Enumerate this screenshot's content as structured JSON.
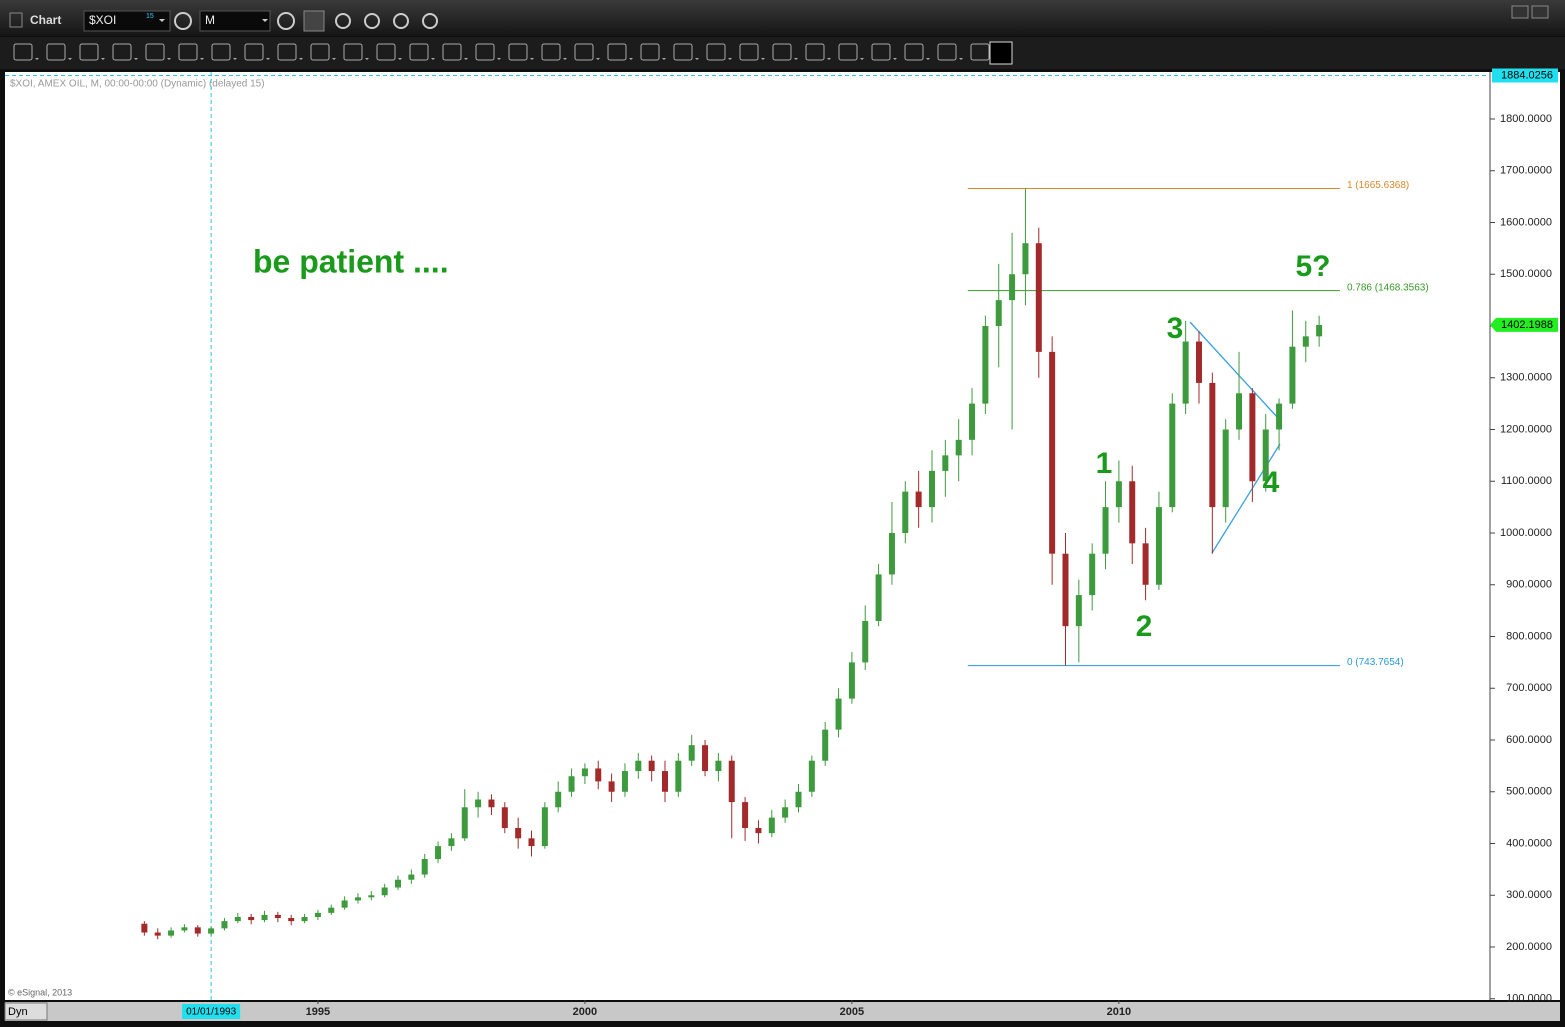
{
  "window": {
    "title": "Chart",
    "symbol": "$XOI",
    "symbol_badge": "15",
    "interval": "M",
    "status": "Dyn"
  },
  "chart_data": {
    "type": "candlestick",
    "title": "$XOI, AMEX OIL, M, 00:00-00:00 (Dynamic) (delayed 15)",
    "copyright": "© eSignal, 2013",
    "annotation": "be patient ....",
    "waves": [
      "1",
      "2",
      "3",
      "4",
      "5?"
    ],
    "up_color": "#3d9a3d",
    "down_color": "#a32a2a",
    "grid": false,
    "xlim": [
      1989.14,
      2016.95
    ],
    "xticks": [
      1995,
      2000,
      2005,
      2010
    ],
    "ylim": [
      97.6,
      1890.8
    ],
    "yticks": [
      {
        "value": 100,
        "label": "100.0000"
      },
      {
        "value": 200,
        "label": "200.0000"
      },
      {
        "value": 300,
        "label": "300.0000"
      },
      {
        "value": 400,
        "label": "400.0000"
      },
      {
        "value": 500,
        "label": "500.0000"
      },
      {
        "value": 600,
        "label": "600.0000"
      },
      {
        "value": 700,
        "label": "700.0000"
      },
      {
        "value": 800,
        "label": "800.0000"
      },
      {
        "value": 900,
        "label": "900.0000"
      },
      {
        "value": 1000,
        "label": "1000.0000"
      },
      {
        "value": 1100,
        "label": "1100.0000"
      },
      {
        "value": 1200,
        "label": "1200.0000"
      },
      {
        "value": 1300,
        "label": "1300.0000"
      },
      {
        "value": 1400,
        "label": "1400.0000"
      },
      {
        "value": 1500,
        "label": "1500.0000"
      },
      {
        "value": 1600,
        "label": "1600.0000"
      },
      {
        "value": 1700,
        "label": "1700.0000"
      },
      {
        "value": 1800,
        "label": "1800.0000"
      }
    ],
    "cursor_x": {
      "value": 1993.0,
      "label": "01/01/1993"
    },
    "cursor_price": 1884.0256,
    "last_price": 1402.1988,
    "fib_x": [
      2007.17,
      2014.14
    ],
    "fib_levels": [
      {
        "label": "1 (1665.6368)",
        "value": 1665.6368,
        "color": "#d9892b"
      },
      {
        "label": "0.786 (1468.3563)",
        "value": 1468.3563,
        "color": "#3a9a2a"
      },
      {
        "label": "0 (743.7654)",
        "value": 743.7654,
        "color": "#2a9ad9"
      }
    ],
    "x": [
      1991.75,
      1992,
      1992.25,
      1992.5,
      1992.75,
      1993,
      1993.25,
      1993.5,
      1993.75,
      1994,
      1994.25,
      1994.5,
      1994.75,
      1995,
      1995.25,
      1995.5,
      1995.75,
      1996,
      1996.25,
      1996.5,
      1996.75,
      1997,
      1997.25,
      1997.5,
      1997.75,
      1998,
      1998.25,
      1998.5,
      1998.75,
      1999,
      1999.25,
      1999.5,
      1999.75,
      2000,
      2000.25,
      2000.5,
      2000.75,
      2001,
      2001.25,
      2001.5,
      2001.75,
      2002,
      2002.25,
      2002.5,
      2002.75,
      2003,
      2003.25,
      2003.5,
      2003.75,
      2004,
      2004.25,
      2004.5,
      2004.75,
      2005,
      2005.25,
      2005.5,
      2005.75,
      2006,
      2006.25,
      2006.5,
      2006.75,
      2007,
      2007.25,
      2007.5,
      2007.75,
      2008,
      2008.25,
      2008.5,
      2008.75,
      2009,
      2009.25,
      2009.5,
      2009.75,
      2010,
      2010.25,
      2010.5,
      2010.75,
      2011,
      2011.25,
      2011.5,
      2011.75,
      2012,
      2012.25,
      2012.5,
      2012.75,
      2013,
      2013.25,
      2013.5,
      2013.75
    ],
    "open": [
      245,
      228,
      222,
      232,
      238,
      226,
      236,
      250,
      258,
      252,
      262,
      256,
      250,
      258,
      266,
      276,
      290,
      296,
      300,
      315,
      330,
      340,
      370,
      395,
      410,
      470,
      485,
      470,
      430,
      410,
      395,
      470,
      500,
      530,
      545,
      520,
      500,
      540,
      560,
      540,
      500,
      560,
      590,
      540,
      560,
      480,
      430,
      420,
      450,
      470,
      500,
      560,
      620,
      680,
      750,
      830,
      920,
      1000,
      1080,
      1050,
      1120,
      1150,
      1180,
      1250,
      1400,
      1450,
      1500,
      1560,
      1350,
      960,
      820,
      880,
      960,
      1050,
      1100,
      980,
      900,
      1050,
      1250,
      1370,
      1290,
      1050,
      1200,
      1270,
      1100,
      1200,
      1250,
      1360,
      1380
    ],
    "high": [
      250,
      236,
      238,
      244,
      242,
      240,
      256,
      266,
      264,
      270,
      268,
      262,
      264,
      272,
      282,
      298,
      304,
      308,
      322,
      338,
      350,
      380,
      404,
      420,
      505,
      500,
      495,
      480,
      450,
      425,
      480,
      520,
      545,
      555,
      560,
      535,
      555,
      575,
      570,
      560,
      575,
      610,
      600,
      575,
      570,
      490,
      445,
      465,
      485,
      515,
      570,
      635,
      700,
      770,
      860,
      940,
      1060,
      1100,
      1120,
      1160,
      1180,
      1220,
      1280,
      1420,
      1520,
      1580,
      1666,
      1590,
      1380,
      1000,
      910,
      980,
      1100,
      1140,
      1130,
      1010,
      1080,
      1270,
      1410,
      1390,
      1310,
      1220,
      1350,
      1280,
      1230,
      1260,
      1430,
      1410,
      1420
    ],
    "low": [
      222,
      215,
      218,
      228,
      220,
      222,
      232,
      246,
      244,
      248,
      248,
      242,
      246,
      252,
      262,
      272,
      284,
      290,
      296,
      310,
      322,
      334,
      362,
      386,
      405,
      450,
      455,
      420,
      390,
      375,
      390,
      460,
      490,
      515,
      505,
      480,
      490,
      525,
      520,
      480,
      490,
      550,
      530,
      520,
      410,
      405,
      400,
      412,
      440,
      460,
      490,
      550,
      605,
      670,
      735,
      820,
      900,
      980,
      1010,
      1020,
      1070,
      1100,
      1150,
      1230,
      1320,
      1200,
      1440,
      1300,
      900,
      744,
      750,
      850,
      930,
      1020,
      940,
      870,
      890,
      1040,
      1230,
      1250,
      960,
      1020,
      1180,
      1060,
      1080,
      1160,
      1240,
      1330,
      1360
    ],
    "close": [
      228,
      222,
      232,
      238,
      226,
      236,
      250,
      258,
      252,
      262,
      256,
      250,
      258,
      266,
      276,
      290,
      296,
      300,
      315,
      330,
      340,
      370,
      395,
      410,
      470,
      485,
      470,
      430,
      410,
      395,
      470,
      500,
      530,
      545,
      520,
      500,
      540,
      560,
      540,
      500,
      560,
      590,
      540,
      560,
      480,
      430,
      420,
      450,
      470,
      500,
      560,
      620,
      680,
      750,
      830,
      920,
      1000,
      1080,
      1050,
      1120,
      1150,
      1180,
      1250,
      1400,
      1450,
      1500,
      1560,
      1350,
      960,
      820,
      880,
      960,
      1050,
      1100,
      980,
      900,
      1050,
      1250,
      1370,
      1290,
      1050,
      1200,
      1270,
      1100,
      1200,
      1250,
      1360,
      1380,
      1402
    ]
  }
}
